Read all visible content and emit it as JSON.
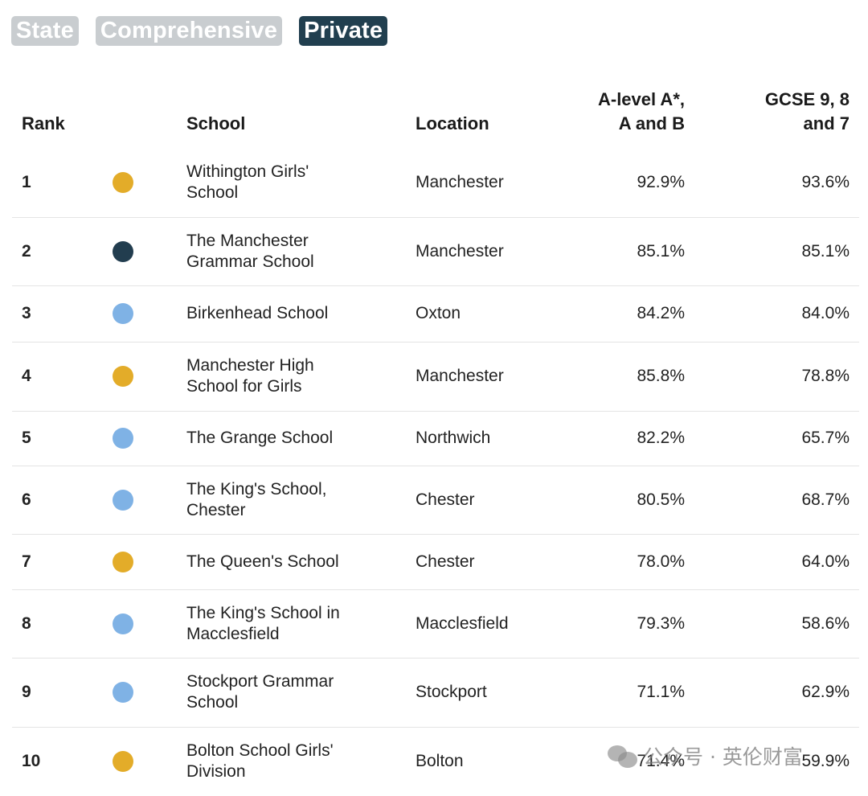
{
  "filters": [
    {
      "label": "State",
      "active": false
    },
    {
      "label": "Comprehensive",
      "active": false
    },
    {
      "label": "Private",
      "active": true
    }
  ],
  "columns": {
    "rank": "Rank",
    "school": "School",
    "location": "Location",
    "alevel": [
      "A-level A*,",
      "A and B"
    ],
    "gcse": [
      "GCSE 9, 8",
      "and 7"
    ]
  },
  "colors": {
    "gold": "#e3ac29",
    "navy": "#223d4f",
    "lightblue": "#7fb2e5"
  },
  "rows": [
    {
      "rank": "1",
      "dot": "gold",
      "school": [
        "Withington Girls'",
        "School"
      ],
      "location": "Manchester",
      "alevel": "92.9%",
      "gcse": "93.6%"
    },
    {
      "rank": "2",
      "dot": "navy",
      "school": [
        "The Manchester",
        "Grammar School"
      ],
      "location": "Manchester",
      "alevel": "85.1%",
      "gcse": "85.1%"
    },
    {
      "rank": "3",
      "dot": "lightblue",
      "school": [
        "Birkenhead School"
      ],
      "location": "Oxton",
      "alevel": "84.2%",
      "gcse": "84.0%"
    },
    {
      "rank": "4",
      "dot": "gold",
      "school": [
        "Manchester High",
        "School for Girls"
      ],
      "location": "Manchester",
      "alevel": "85.8%",
      "gcse": "78.8%"
    },
    {
      "rank": "5",
      "dot": "lightblue",
      "school": [
        "The Grange School"
      ],
      "location": "Northwich",
      "alevel": "82.2%",
      "gcse": "65.7%"
    },
    {
      "rank": "6",
      "dot": "lightblue",
      "school": [
        "The King's School,",
        "Chester"
      ],
      "location": "Chester",
      "alevel": "80.5%",
      "gcse": "68.7%"
    },
    {
      "rank": "7",
      "dot": "gold",
      "school": [
        "The Queen's School"
      ],
      "location": "Chester",
      "alevel": "78.0%",
      "gcse": "64.0%"
    },
    {
      "rank": "8",
      "dot": "lightblue",
      "school": [
        "The King's School in",
        "Macclesfield"
      ],
      "location": "Macclesfield",
      "alevel": "79.3%",
      "gcse": "58.6%"
    },
    {
      "rank": "9",
      "dot": "lightblue",
      "school": [
        "Stockport Grammar",
        "School"
      ],
      "location": "Stockport",
      "alevel": "71.1%",
      "gcse": "62.9%"
    },
    {
      "rank": "10",
      "dot": "gold",
      "school": [
        "Bolton School Girls'",
        "Division"
      ],
      "location": "Bolton",
      "alevel": "71.4%",
      "gcse": "59.9%"
    }
  ],
  "watermark": "公众号 · 英伦财富"
}
